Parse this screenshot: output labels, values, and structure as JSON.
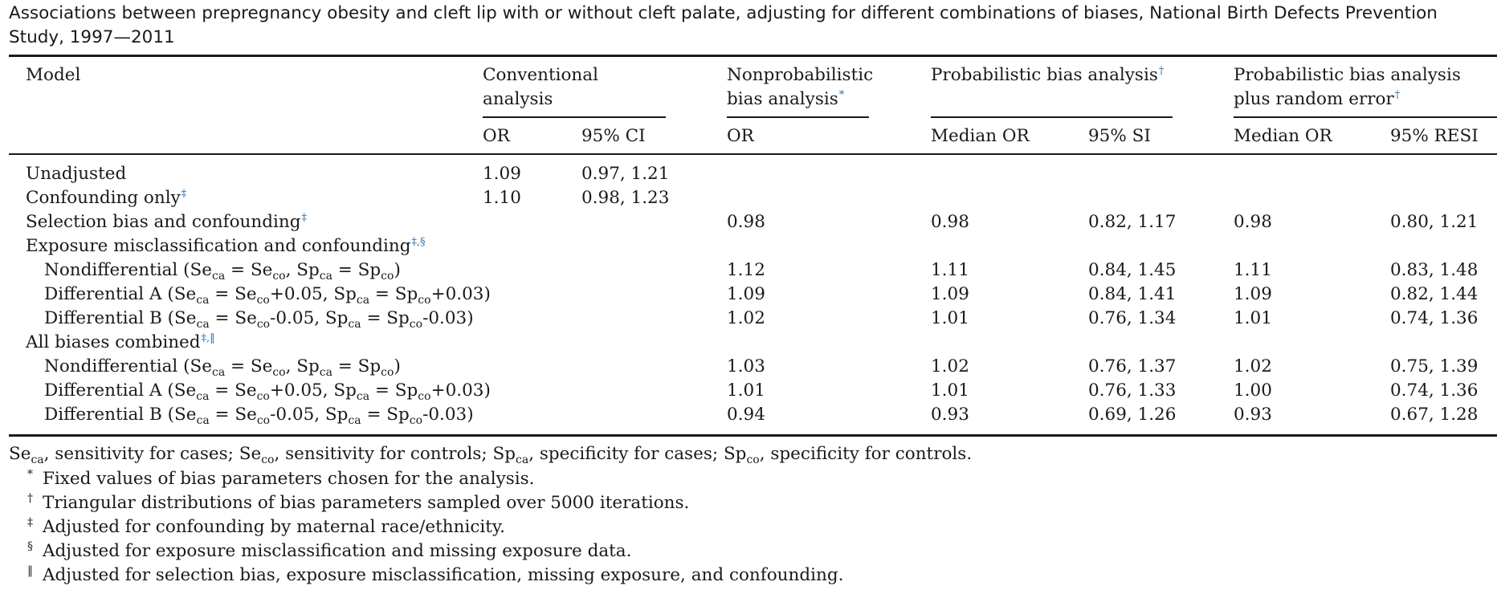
{
  "caption": "Associations between prepregnancy obesity and cleft lip with or without cleft palate, adjusting for different combinations of biases, National Birth Defects Prevention Study, 1997—2011",
  "header": {
    "model": "Model",
    "conventional_line1": "Conventional",
    "conventional_line2": "analysis",
    "nonprob_line1": "Nonprobabilistic",
    "nonprob_line2": "bias analysis",
    "nonprob_mark": "*",
    "prob_line1": "Probabilistic bias analysis",
    "prob_mark": "†",
    "probre_line1": "Probabilistic bias analysis",
    "probre_line2": "plus random error",
    "probre_mark": "†",
    "sub": {
      "conv_or": "OR",
      "conv_ci": "95% CI",
      "np_or": "OR",
      "pb_med": "Median OR",
      "pb_si": "95% SI",
      "pr_med": "Median OR",
      "pr_resi": "95% RESI"
    }
  },
  "rows": [
    {
      "label": "Unadjusted",
      "conv_or": "1.09",
      "conv_ci": "0.97, 1.21"
    },
    {
      "label": "Confounding only",
      "mark": "‡",
      "conv_or": "1.10",
      "conv_ci": "0.98, 1.23"
    },
    {
      "label": "Selection bias and confounding",
      "mark": "‡",
      "np_or": "0.98",
      "pb_med": "0.98",
      "pb_si": "0.82, 1.17",
      "pr_med": "0.98",
      "pr_resi": "0.80, 1.21"
    },
    {
      "label": "Exposure misclassification and confounding",
      "mark": "‡,§"
    },
    {
      "label": "Nondifferential",
      "np_or": "1.12",
      "pb_med": "1.11",
      "pb_si": "0.84, 1.45",
      "pr_med": "1.11",
      "pr_resi": "0.83, 1.48"
    },
    {
      "label": "Differential A",
      "np_or": "1.09",
      "pb_med": "1.09",
      "pb_si": "0.84, 1.41",
      "pr_med": "1.09",
      "pr_resi": "0.82, 1.44"
    },
    {
      "label": "Differential B",
      "np_or": "1.02",
      "pb_med": "1.01",
      "pb_si": "0.76, 1.34",
      "pr_med": "1.01",
      "pr_resi": "0.74, 1.36"
    },
    {
      "label": "All biases combined",
      "mark": "‡,‖"
    },
    {
      "label": "Nondifferential",
      "np_or": "1.03",
      "pb_med": "1.02",
      "pb_si": "0.76, 1.37",
      "pr_med": "1.02",
      "pr_resi": "0.75, 1.39"
    },
    {
      "label": "Differential A",
      "np_or": "1.01",
      "pb_med": "1.01",
      "pb_si": "0.76, 1.33",
      "pr_med": "1.00",
      "pr_resi": "0.74, 1.36"
    },
    {
      "label": "Differential B",
      "np_or": "0.94",
      "pb_med": "0.93",
      "pb_si": "0.69, 1.26",
      "pr_med": "0.93",
      "pr_resi": "0.67, 1.28"
    }
  ],
  "formula_parts": {
    "se": "Se",
    "sp": "Sp",
    "ca": "ca",
    "co": "co",
    "eq": " = ",
    "open": " (",
    "close": ")",
    "comma": ", ",
    "plus_se": "+0.05",
    "plus_sp": "+0.03",
    "minus_se": "-0.05",
    "minus_sp": "-0.03"
  },
  "footnotes": {
    "abbrev": {
      "se": "Se",
      "ca": "ca",
      "co": "co",
      "sp": "Sp",
      "t1": ", sensitivity for cases; ",
      "t2": ", sensitivity for controls; ",
      "t3": ", specificity for cases; ",
      "t4": ", specificity for controls."
    },
    "notes": [
      {
        "symbol": "*",
        "text": "Fixed values of bias parameters chosen for the analysis."
      },
      {
        "symbol": "†",
        "text": "Triangular distributions of bias parameters sampled over 5000 iterations."
      },
      {
        "symbol": "‡",
        "text": "Adjusted for confounding by maternal race/ethnicity."
      },
      {
        "symbol": "§",
        "text": "Adjusted for exposure misclassification and missing exposure data."
      },
      {
        "symbol": "‖",
        "text": "Adjusted for selection bias, exposure misclassification, missing exposure, and confounding."
      }
    ]
  }
}
